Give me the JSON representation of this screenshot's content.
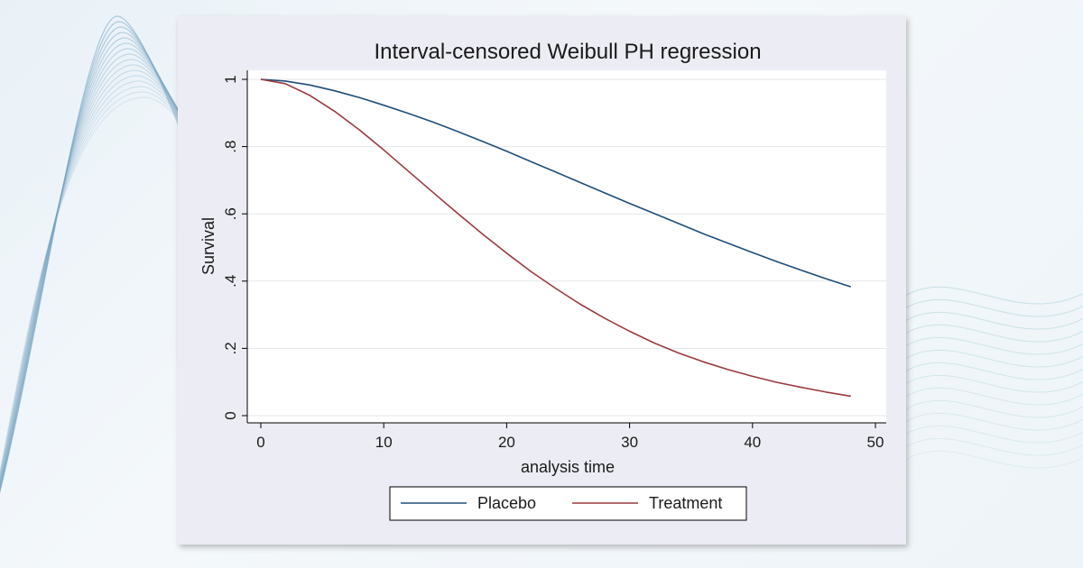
{
  "colors": {
    "placebo": "#1f4e79",
    "treatment": "#9b3a3f",
    "plot_bg": "#ffffff",
    "panel_bg": "#ecedf4",
    "grid": "#e3e6ec"
  },
  "chart_data": {
    "type": "line",
    "title": "Interval-censored Weibull PH regression",
    "xlabel": "analysis time",
    "ylabel": "Survival",
    "xlim": [
      0,
      50
    ],
    "ylim": [
      0,
      1
    ],
    "xticks": [
      0,
      10,
      20,
      30,
      40,
      50
    ],
    "yticks": [
      0,
      0.2,
      0.4,
      0.6,
      0.8,
      1
    ],
    "xtick_labels": [
      "0",
      "10",
      "20",
      "30",
      "40",
      "50"
    ],
    "ytick_labels": [
      "0",
      ".2",
      ".4",
      ".6",
      ".8",
      "1"
    ],
    "grid": true,
    "legend_position": "bottom",
    "x": [
      0,
      2,
      4,
      6,
      8,
      10,
      12,
      14,
      16,
      18,
      20,
      22,
      24,
      26,
      28,
      30,
      32,
      34,
      36,
      38,
      40,
      42,
      44,
      46,
      48
    ],
    "series": [
      {
        "name": "Placebo",
        "color_key": "placebo",
        "values": [
          1.0,
          0.995,
          0.983,
          0.966,
          0.946,
          0.923,
          0.899,
          0.873,
          0.845,
          0.816,
          0.786,
          0.755,
          0.724,
          0.693,
          0.662,
          0.631,
          0.601,
          0.571,
          0.541,
          0.513,
          0.485,
          0.458,
          0.432,
          0.407,
          0.383
        ]
      },
      {
        "name": "Treatment",
        "color_key": "treatment",
        "values": [
          1.0,
          0.987,
          0.952,
          0.905,
          0.85,
          0.79,
          0.727,
          0.664,
          0.602,
          0.541,
          0.483,
          0.428,
          0.378,
          0.331,
          0.289,
          0.251,
          0.216,
          0.186,
          0.16,
          0.137,
          0.117,
          0.099,
          0.084,
          0.07,
          0.058
        ]
      }
    ]
  }
}
